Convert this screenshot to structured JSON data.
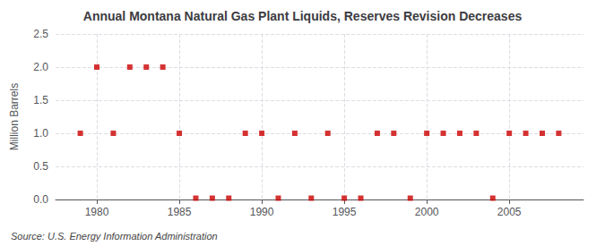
{
  "chart_data": {
    "type": "scatter",
    "title": "Annual Montana Natural Gas Plant Liquids, Reserves Revision Decreases",
    "ylabel": "Million Barrels",
    "annotations": [
      "Source: U.S. Energy Information Administration"
    ],
    "x": [
      1979,
      1980,
      1981,
      1982,
      1983,
      1984,
      1985,
      1986,
      1987,
      1988,
      1989,
      1990,
      1991,
      1992,
      1993,
      1994,
      1995,
      1996,
      1997,
      1998,
      1999,
      2000,
      2001,
      2002,
      2003,
      2004,
      2005,
      2006,
      2007,
      2008
    ],
    "values": [
      1.0,
      2.0,
      1.0,
      2.0,
      2.0,
      2.0,
      1.0,
      0.02,
      0.02,
      0.02,
      1.0,
      1.0,
      0.02,
      1.0,
      0.02,
      1.0,
      0.02,
      0.02,
      1.0,
      1.0,
      0.02,
      1.0,
      1.0,
      1.0,
      1.0,
      0.02,
      1.0,
      1.0,
      1.0,
      1.0
    ],
    "color": "#cc0000",
    "marker": "square",
    "xlim": [
      1977.5,
      2009.5
    ],
    "xticks": [
      1980,
      1985,
      1990,
      1995,
      2000,
      2005
    ],
    "ylim": [
      0.0,
      2.5
    ],
    "yticks": [
      {
        "value": 0.0,
        "label": "0.0"
      },
      0.5,
      {
        "value": 1.0,
        "label": "1.0"
      },
      1.5,
      {
        "value": 2.0,
        "label": "2.0"
      },
      2.5
    ],
    "grid": true
  }
}
